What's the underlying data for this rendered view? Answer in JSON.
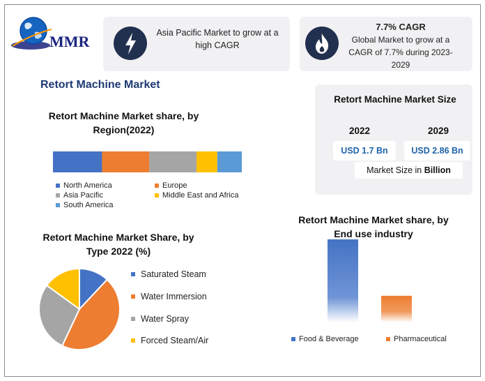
{
  "logo": {
    "text": "MMR"
  },
  "highlights": [
    {
      "icon": "lightning-icon",
      "text": "Asia Pacific Market to grow at a high CAGR"
    },
    {
      "icon": "flame-icon",
      "title": "7.7% CAGR",
      "text": "Global Market to grow at a CAGR of 7.7% during 2023-2029"
    }
  ],
  "page_title": "Retort Machine Market",
  "market_size": {
    "title": "Retort Machine Market Size",
    "years": [
      "2022",
      "2029"
    ],
    "values": [
      "USD 1.7 Bn",
      "USD 2.86 Bn"
    ],
    "note_prefix": "Market Size in ",
    "note_bold": "Billion"
  },
  "chart_data": [
    {
      "type": "bar",
      "orientation": "horizontal-stacked",
      "title_line1": "Retort Machine Market share, by",
      "title_line2": "Region(2022)",
      "categories": [
        "North America",
        "Europe",
        "Asia Pacific",
        "Middle East and Africa",
        "South America"
      ],
      "values": [
        26,
        25,
        25,
        11,
        13
      ],
      "colors": [
        "#4472c4",
        "#ed7d31",
        "#a5a5a5",
        "#ffc000",
        "#5b9bd5"
      ],
      "legend_position": "bottom"
    },
    {
      "type": "pie",
      "title_line1": "Retort Machine Market Share, by",
      "title_line2": "Type 2022 (%)",
      "categories": [
        "Saturated Steam",
        "Water Immersion",
        "Water Spray",
        "Forced Steam/Air"
      ],
      "values": [
        12,
        45,
        28,
        15
      ],
      "colors": [
        "#4472c4",
        "#ed7d31",
        "#a5a5a5",
        "#ffc000"
      ],
      "legend_position": "right"
    },
    {
      "type": "bar",
      "title_line1": "Retort Machine Market share, by",
      "title_line2": "End use industry",
      "categories": [
        "Food & Beverage",
        "Pharmaceutical"
      ],
      "values": [
        78,
        25
      ],
      "ylim": [
        0,
        80
      ],
      "colors": [
        "#4472c4",
        "#ed7d31"
      ],
      "legend_position": "bottom"
    }
  ]
}
